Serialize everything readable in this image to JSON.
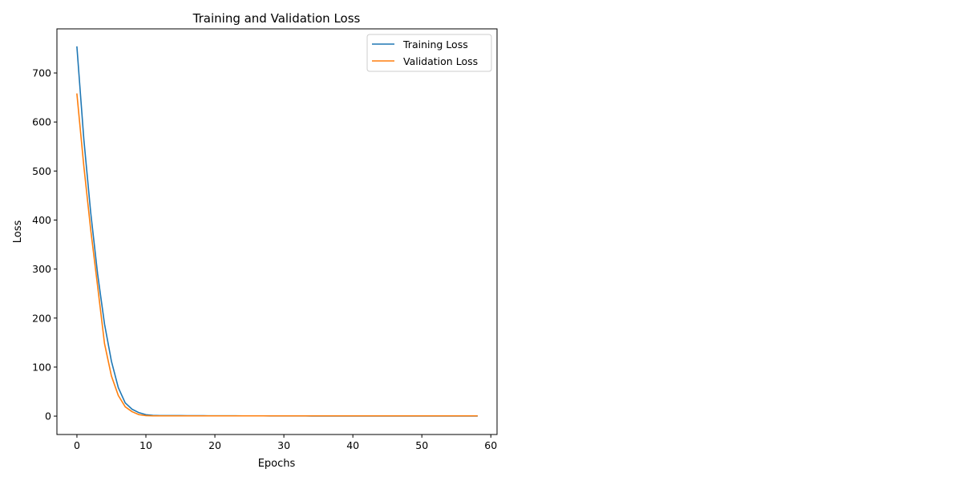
{
  "chart_data": {
    "type": "line",
    "title": "Training and Validation Loss",
    "xlabel": "Epochs",
    "ylabel": "Loss",
    "xlim": [
      -2.9,
      60.9
    ],
    "ylim": [
      -37.5,
      790
    ],
    "x_ticks": [
      0,
      10,
      20,
      30,
      40,
      50,
      60
    ],
    "y_ticks": [
      0,
      100,
      200,
      300,
      400,
      500,
      600,
      700
    ],
    "grid": false,
    "legend_position": "upper right",
    "series": [
      {
        "name": "Training Loss",
        "color": "#1f77b4",
        "x": [
          0,
          1,
          2,
          3,
          4,
          5,
          6,
          7,
          8,
          9,
          10,
          11,
          12,
          13,
          14,
          15,
          16,
          17,
          18,
          19,
          20,
          21,
          22,
          23,
          24,
          25,
          26,
          27,
          28,
          29,
          30,
          31,
          32,
          33,
          34,
          35,
          36,
          37,
          38,
          39,
          40,
          41,
          42,
          43,
          44,
          45,
          46,
          47,
          48,
          49,
          50,
          51,
          52,
          53,
          54,
          55,
          56,
          57,
          58
        ],
        "values": [
          753,
          565,
          415,
          290,
          188,
          112,
          58,
          27,
          14,
          7,
          3,
          1.5,
          1,
          1,
          1,
          1,
          0.9,
          0.8,
          0.8,
          0.7,
          0.7,
          0.6,
          0.6,
          0.6,
          0.5,
          0.5,
          0.5,
          0.5,
          0.4,
          0.4,
          0.4,
          0.4,
          0.4,
          0.4,
          0.3,
          0.3,
          0.3,
          0.3,
          0.3,
          0.3,
          0.3,
          0.3,
          0.3,
          0.2,
          0.2,
          0.2,
          0.2,
          0.2,
          0.2,
          0.2,
          0.2,
          0.2,
          0.2,
          0.2,
          0.2,
          0.2,
          0.2,
          0.2,
          0.2
        ]
      },
      {
        "name": "Validation Loss",
        "color": "#ff7f0e",
        "x": [
          0,
          1,
          2,
          3,
          4,
          5,
          6,
          7,
          8,
          9,
          10,
          11,
          12,
          13,
          14,
          15,
          16,
          17,
          18,
          19,
          20,
          21,
          22,
          23,
          24,
          25,
          26,
          27,
          28,
          29,
          30,
          31,
          32,
          33,
          34,
          35,
          36,
          37,
          38,
          39,
          40,
          41,
          42,
          43,
          44,
          45,
          46,
          47,
          48,
          49,
          50,
          51,
          52,
          53,
          54,
          55,
          56,
          57,
          58
        ],
        "values": [
          657,
          510,
          380,
          265,
          148,
          82,
          42,
          19,
          9,
          3,
          1,
          0.5,
          0.5,
          0.5,
          0.5,
          0.5,
          0.5,
          0.5,
          0.5,
          0.5,
          0.5,
          0.5,
          0.5,
          0.5,
          0.5,
          0.5,
          0.5,
          0.5,
          0.5,
          0.5,
          0.5,
          0.5,
          0.5,
          0.5,
          0.5,
          0.5,
          0.5,
          0.5,
          0.5,
          0.5,
          0.5,
          0.5,
          0.5,
          0.5,
          0.5,
          0.5,
          0.5,
          0.5,
          0.5,
          0.5,
          0.5,
          0.5,
          0.5,
          0.5,
          0.5,
          0.5,
          0.5,
          0.5,
          0.5
        ]
      }
    ]
  }
}
